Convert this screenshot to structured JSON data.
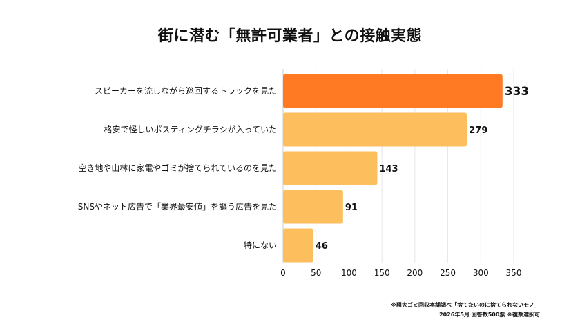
{
  "chart_data": {
    "type": "bar",
    "orientation": "horizontal",
    "title": "街に潜む「無許可業者」との接触実態",
    "categories": [
      "スピーカーを流しながら巡回するトラックを見た",
      "格安で怪しいポスティングチラシが入っていた",
      "空き地や山林に家電やゴミが捨てられているのを見た",
      "SNSやネット広告で「業界最安値」を謳う広告を見た",
      "特にない"
    ],
    "values": [
      333,
      279,
      143,
      91,
      46
    ],
    "xlim": [
      0,
      350
    ],
    "x_ticks": [
      0,
      50,
      100,
      150,
      200,
      250,
      300,
      350
    ],
    "grid": true,
    "colors": {
      "highlight": "#FF7A22",
      "default": "#FDBE5E",
      "grid": "#E6E6E6",
      "text": "#111111"
    },
    "highlight_index": 0
  },
  "footnotes": [
    "※粗大ゴミ回収本舗調べ「捨てたいのに捨てられないモノ」",
    "2026年5月 回答数500票 ※複数選択可"
  ]
}
